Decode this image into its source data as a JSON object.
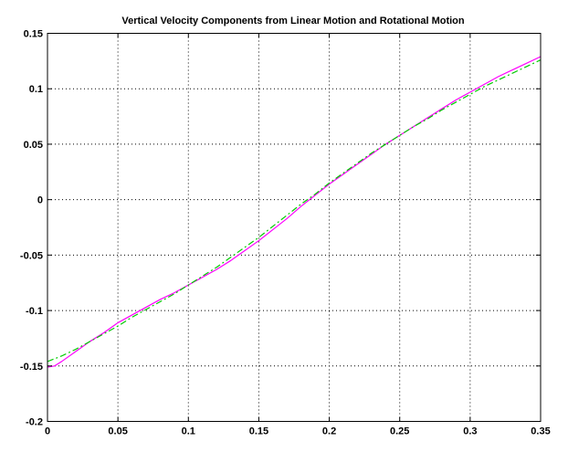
{
  "chart_data": {
    "type": "line",
    "title": "Vertical Velocity Components from Linear Motion and Rotational Motion",
    "xlabel": "",
    "ylabel": "",
    "xlim": [
      0,
      0.35
    ],
    "ylim": [
      -0.2,
      0.15
    ],
    "grid": true,
    "x_ticks": [
      0,
      0.05,
      0.1,
      0.15,
      0.2,
      0.25,
      0.3,
      0.35
    ],
    "x_tick_labels": [
      "0",
      "0.05",
      "0.1",
      "0.15",
      "0.2",
      "0.25",
      "0.3",
      "0.35"
    ],
    "y_ticks": [
      0.15,
      0.1,
      0.05,
      0,
      -0.05,
      -0.1,
      -0.15,
      -0.2
    ],
    "y_tick_labels": [
      "0.15",
      "0.1",
      "0.05",
      "0",
      "-0.05",
      "-0.1",
      "-0.15",
      "-0.2"
    ],
    "series": [
      {
        "color": "#ff00ff",
        "style": "solid",
        "points": [
          [
            0,
            -0.151
          ],
          [
            0.005,
            -0.15
          ],
          [
            0.01,
            -0.146
          ],
          [
            0.02,
            -0.137
          ],
          [
            0.03,
            -0.128
          ],
          [
            0.04,
            -0.12
          ],
          [
            0.05,
            -0.111
          ],
          [
            0.06,
            -0.104
          ],
          [
            0.07,
            -0.097
          ],
          [
            0.08,
            -0.09
          ],
          [
            0.09,
            -0.084
          ],
          [
            0.1,
            -0.077
          ],
          [
            0.11,
            -0.07
          ],
          [
            0.12,
            -0.063
          ],
          [
            0.13,
            -0.055
          ],
          [
            0.14,
            -0.046
          ],
          [
            0.15,
            -0.037
          ],
          [
            0.16,
            -0.027
          ],
          [
            0.17,
            -0.017
          ],
          [
            0.18,
            -0.006
          ],
          [
            0.19,
            0.004
          ],
          [
            0.2,
            0.014
          ],
          [
            0.21,
            0.023
          ],
          [
            0.22,
            0.032
          ],
          [
            0.23,
            0.041
          ],
          [
            0.24,
            0.05
          ],
          [
            0.25,
            0.058
          ],
          [
            0.26,
            0.066
          ],
          [
            0.27,
            0.074
          ],
          [
            0.28,
            0.082
          ],
          [
            0.29,
            0.09
          ],
          [
            0.3,
            0.097
          ],
          [
            0.31,
            0.104
          ],
          [
            0.32,
            0.111
          ],
          [
            0.33,
            0.117
          ],
          [
            0.34,
            0.123
          ],
          [
            0.35,
            0.129
          ]
        ]
      },
      {
        "color": "#00cc00",
        "style": "dashdot",
        "points": [
          [
            0,
            -0.146
          ],
          [
            0.01,
            -0.141
          ],
          [
            0.02,
            -0.135
          ],
          [
            0.03,
            -0.128
          ],
          [
            0.04,
            -0.121
          ],
          [
            0.05,
            -0.114
          ],
          [
            0.06,
            -0.106
          ],
          [
            0.07,
            -0.099
          ],
          [
            0.08,
            -0.092
          ],
          [
            0.09,
            -0.085
          ],
          [
            0.1,
            -0.077
          ],
          [
            0.11,
            -0.069
          ],
          [
            0.12,
            -0.061
          ],
          [
            0.13,
            -0.052
          ],
          [
            0.14,
            -0.043
          ],
          [
            0.15,
            -0.034
          ],
          [
            0.16,
            -0.024
          ],
          [
            0.17,
            -0.014
          ],
          [
            0.18,
            -0.004
          ],
          [
            0.19,
            0.005
          ],
          [
            0.2,
            0.015
          ],
          [
            0.21,
            0.024
          ],
          [
            0.22,
            0.033
          ],
          [
            0.23,
            0.042
          ],
          [
            0.24,
            0.05
          ],
          [
            0.25,
            0.058
          ],
          [
            0.26,
            0.066
          ],
          [
            0.27,
            0.073
          ],
          [
            0.28,
            0.081
          ],
          [
            0.29,
            0.088
          ],
          [
            0.3,
            0.095
          ],
          [
            0.31,
            0.102
          ],
          [
            0.32,
            0.108
          ],
          [
            0.33,
            0.114
          ],
          [
            0.34,
            0.12
          ],
          [
            0.35,
            0.126
          ]
        ]
      }
    ]
  }
}
